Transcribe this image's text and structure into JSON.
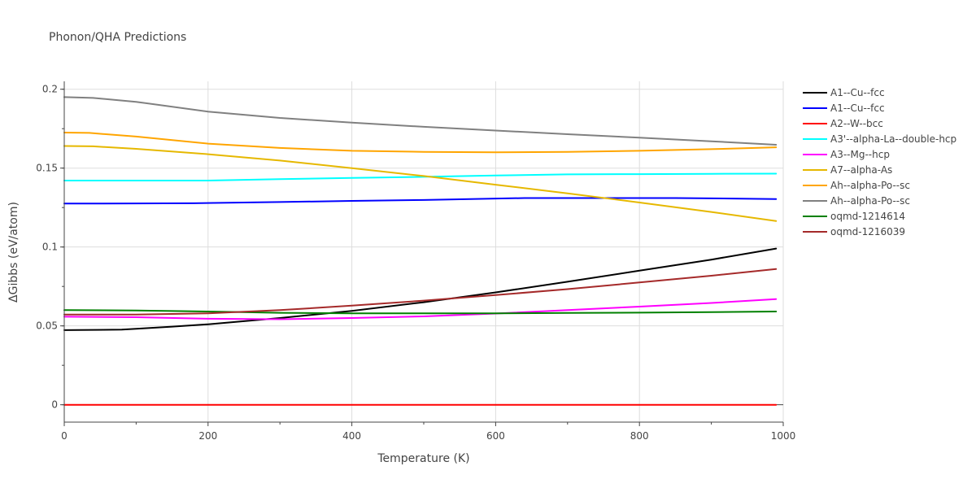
{
  "chart_data": {
    "type": "line",
    "title": "Phonon/QHA Predictions",
    "xlabel": "Temperature (K)",
    "ylabel": "ΔGibbs (eV/atom)",
    "xlim": [
      0,
      1000
    ],
    "ylim": [
      -0.011,
      0.205
    ],
    "xticks": [
      0,
      200,
      400,
      600,
      800,
      1000
    ],
    "xtick_labels": [
      "0",
      "200",
      "400",
      "600",
      "800",
      "1000"
    ],
    "yticks": [
      0,
      0.05,
      0.1,
      0.15,
      0.2
    ],
    "ytick_labels": [
      "0",
      "0.05",
      "0.1",
      "0.15",
      "0.2"
    ],
    "grid": true,
    "legend_position": "right",
    "series": [
      {
        "name": "A1--Cu--fcc",
        "color": "#000000",
        "x": [
          0,
          80,
          100,
          150,
          200,
          300,
          400,
          500,
          600,
          700,
          800,
          900,
          990
        ],
        "y": [
          0.0473,
          0.0476,
          0.0482,
          0.0495,
          0.051,
          0.055,
          0.0595,
          0.065,
          0.0712,
          0.078,
          0.085,
          0.092,
          0.099
        ]
      },
      {
        "name": "A1--Cu--fcc",
        "color": "#0000ff",
        "x": [
          0,
          100,
          180,
          300,
          400,
          500,
          640,
          700,
          800,
          850,
          900,
          990
        ],
        "y": [
          0.1275,
          0.1276,
          0.1277,
          0.1285,
          0.1292,
          0.1298,
          0.131,
          0.131,
          0.131,
          0.131,
          0.1308,
          0.1304
        ]
      },
      {
        "name": "A2--W--bcc",
        "color": "#ff0000",
        "x": [
          0,
          990
        ],
        "y": [
          0,
          0
        ]
      },
      {
        "name": "A3'--alpha-La--double-hcp",
        "color": "#00ffff",
        "x": [
          0,
          200,
          300,
          400,
          500,
          600,
          700,
          800,
          900,
          990
        ],
        "y": [
          0.1421,
          0.1421,
          0.143,
          0.1438,
          0.1445,
          0.1453,
          0.146,
          0.1462,
          0.1464,
          0.1465
        ]
      },
      {
        "name": "A3--Mg--hcp",
        "color": "#ff00ff",
        "x": [
          0,
          100,
          200,
          300,
          400,
          500,
          600,
          700,
          800,
          900,
          990
        ],
        "y": [
          0.0558,
          0.0555,
          0.0545,
          0.0542,
          0.055,
          0.056,
          0.0578,
          0.06,
          0.0622,
          0.0645,
          0.067
        ]
      },
      {
        "name": "A7--alpha-As",
        "color": "#e6b800",
        "x": [
          0,
          40,
          100,
          200,
          300,
          400,
          500,
          600,
          700,
          800,
          900,
          990
        ],
        "y": [
          0.164,
          0.1638,
          0.1622,
          0.1588,
          0.1548,
          0.15,
          0.145,
          0.1395,
          0.134,
          0.1282,
          0.1222,
          0.1165
        ]
      },
      {
        "name": "Ah--alpha-Po--sc",
        "color": "#ffa500",
        "x": [
          0,
          35,
          100,
          200,
          300,
          400,
          500,
          600,
          700,
          800,
          900,
          990
        ],
        "y": [
          0.1725,
          0.1723,
          0.17,
          0.1655,
          0.1628,
          0.161,
          0.1603,
          0.16,
          0.1603,
          0.161,
          0.162,
          0.1632
        ]
      },
      {
        "name": "Ah--alpha-Po--sc",
        "color": "#808080",
        "x": [
          0,
          40,
          100,
          200,
          300,
          400,
          500,
          600,
          700,
          800,
          900,
          990
        ],
        "y": [
          0.195,
          0.1945,
          0.192,
          0.1858,
          0.1818,
          0.1788,
          0.1762,
          0.1738,
          0.1715,
          0.1693,
          0.167,
          0.1648
        ]
      },
      {
        "name": "oqmd-1214614",
        "color": "#008000",
        "x": [
          0,
          100,
          200,
          300,
          400,
          500,
          600,
          700,
          800,
          900,
          990
        ],
        "y": [
          0.06,
          0.0598,
          0.0591,
          0.0583,
          0.058,
          0.0579,
          0.058,
          0.0582,
          0.0584,
          0.0587,
          0.0591
        ]
      },
      {
        "name": "oqmd-1216039",
        "color": "#a52a2a",
        "x": [
          0,
          100,
          200,
          300,
          400,
          500,
          600,
          700,
          800,
          900,
          990
        ],
        "y": [
          0.0572,
          0.0572,
          0.058,
          0.06,
          0.0628,
          0.066,
          0.0695,
          0.0733,
          0.0775,
          0.0818,
          0.086
        ]
      }
    ]
  }
}
